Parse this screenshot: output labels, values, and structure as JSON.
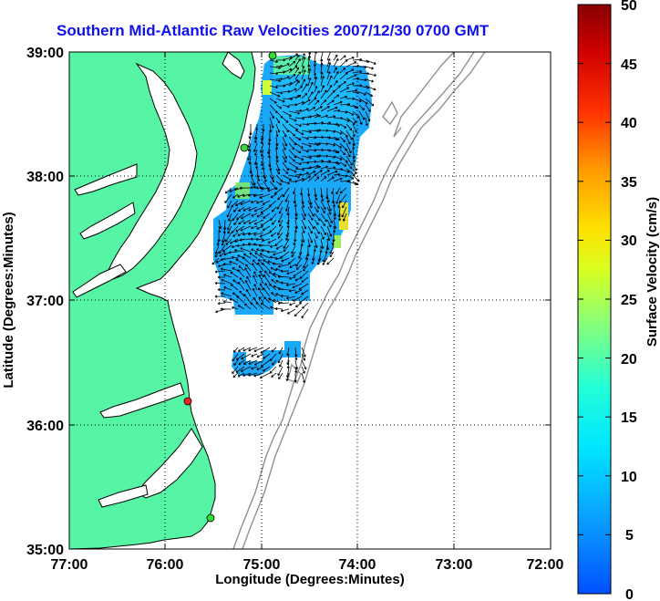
{
  "title": "Southern Mid-Atlantic Raw Velocities 2007/12/30 0700 GMT",
  "xlabel": "Longitude (Degrees:Minutes)",
  "ylabel": "Latitude (Degrees:Minutes)",
  "x_ticks": [
    "77:00",
    "76:00",
    "75:00",
    "74:00",
    "73:00",
    "72:00"
  ],
  "y_ticks": [
    "39:00",
    "38:00",
    "37:00",
    "36:00",
    "35:00"
  ],
  "colorbar": {
    "label": "Surface Velocity (cm/s)",
    "ticks": [
      "50",
      "45",
      "40",
      "35",
      "30",
      "25",
      "20",
      "15",
      "10",
      "5",
      "0"
    ],
    "range": [
      0,
      50
    ],
    "colormap": "jet"
  },
  "colors": {
    "land": "#55f5a5",
    "water": "#ffffff",
    "grid": "#000000",
    "bathymetry": "#909090",
    "title": "#1010ee",
    "station_green": "#33dd33",
    "station_red": "#ee2222"
  }
}
